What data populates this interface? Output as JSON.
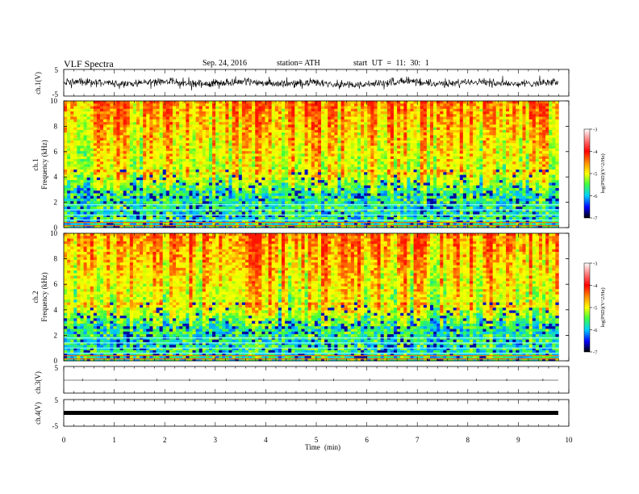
{
  "header": {
    "title": "VLF Spectra",
    "date": "Sep. 24, 2016",
    "station": "station= ATH",
    "start": "start UT = 11: 30: 1"
  },
  "colors": {
    "spectrogram_low": "#000080",
    "spectrogram_mid": "#00c8ff",
    "spectrogram_green": "#40ff40",
    "spectrogram_yellow": "#ffff00",
    "spectrogram_high": "#ff2000"
  },
  "chart_data": [
    {
      "id": "ch1-waveform",
      "type": "line",
      "ylabel": "ch.1(V)",
      "ylim": [
        -5,
        5
      ],
      "yticks": [
        "5",
        "-5"
      ],
      "xlim": [
        0,
        10
      ],
      "data_extent": [
        0,
        9.8
      ],
      "description_range": [
        -1.8,
        1.4
      ]
    },
    {
      "id": "ch1-spectrogram",
      "type": "heatmap",
      "ylabel": "ch.1\nFrequency (kHz)",
      "ylabel_channel": "ch.1",
      "ylabel_axis": "Frequency (kHz)",
      "ylim": [
        0,
        10
      ],
      "yticks": [
        "0",
        "2",
        "4",
        "6",
        "8",
        "10"
      ],
      "xlim": [
        0,
        10
      ],
      "colorbar": {
        "label": "log(PSD) (V²/Hz)",
        "range": [
          -7,
          -3
        ],
        "ticks": [
          "-3",
          "-4",
          "-5",
          "-6",
          "-7"
        ]
      }
    },
    {
      "id": "ch2-spectrogram",
      "type": "heatmap",
      "ylabel_channel": "ch.2",
      "ylabel_axis": "Frequency (kHz)",
      "ylim": [
        0,
        10
      ],
      "yticks": [
        "0",
        "2",
        "4",
        "6",
        "8",
        "10"
      ],
      "xlim": [
        0,
        10
      ],
      "colorbar": {
        "label": "log(PSD) (V²/Hz)",
        "range": [
          -7,
          -3
        ],
        "ticks": [
          "-3",
          "-4",
          "-5",
          "-6",
          "-7"
        ]
      }
    },
    {
      "id": "ch3-waveform",
      "type": "line",
      "ylabel": "ch.3(V)",
      "ylim": [
        -5,
        5
      ],
      "yticks": [
        "5"
      ],
      "xlim": [
        0,
        10
      ],
      "level": 0
    },
    {
      "id": "ch4-waveform",
      "type": "line",
      "ylabel": "ch.4(V)",
      "ylim": [
        -5,
        5
      ],
      "yticks": [
        "5",
        "-5"
      ],
      "xlim": [
        0,
        10
      ],
      "level": 0
    }
  ],
  "xaxis": {
    "label": "Time (min)",
    "ticks": [
      "0",
      "1",
      "2",
      "3",
      "4",
      "5",
      "6",
      "7",
      "8",
      "9",
      "10"
    ]
  },
  "colorbar_label_text": "log(PSD)(V^2/Hz)"
}
